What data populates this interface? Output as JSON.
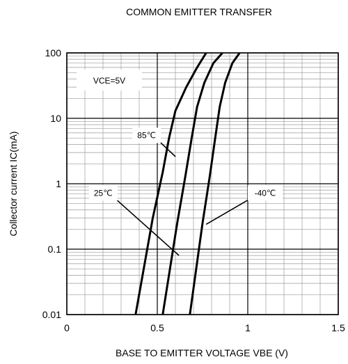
{
  "chart_data": {
    "type": "line",
    "title": "COMMON EMITTER TRANSFER",
    "xlabel": "BASE TO EMITTER VOLTAGE  VBE  (V)",
    "ylabel": "Collector current IC(mA)",
    "xlim": [
      0,
      1.5
    ],
    "ylim": [
      0.01,
      100
    ],
    "y_scale": "log",
    "grid": true,
    "x_ticks": [
      0,
      0.5,
      1,
      1.5
    ],
    "x_tick_labels": [
      "0",
      "0.5",
      "1",
      "1.5"
    ],
    "y_ticks": [
      0.01,
      0.1,
      1,
      10,
      100
    ],
    "y_tick_labels": [
      "0.01",
      "0.1",
      "1",
      "10",
      "100"
    ],
    "condition_label": "VCE=5V",
    "series": [
      {
        "name": "85℃",
        "points": [
          [
            0.38,
            0.01
          ],
          [
            0.425,
            0.05
          ],
          [
            0.475,
            0.3
          ],
          [
            0.53,
            1.5
          ],
          [
            0.565,
            5
          ],
          [
            0.6,
            13
          ],
          [
            0.66,
            30
          ],
          [
            0.72,
            60
          ],
          [
            0.77,
            100
          ]
        ]
      },
      {
        "name": "25℃",
        "points": [
          [
            0.53,
            0.01
          ],
          [
            0.57,
            0.05
          ],
          [
            0.61,
            0.25
          ],
          [
            0.655,
            1.3
          ],
          [
            0.69,
            5
          ],
          [
            0.72,
            15
          ],
          [
            0.76,
            35
          ],
          [
            0.81,
            70
          ],
          [
            0.86,
            100
          ]
        ]
      },
      {
        "name": "-40℃",
        "points": [
          [
            0.68,
            0.01
          ],
          [
            0.715,
            0.05
          ],
          [
            0.75,
            0.25
          ],
          [
            0.79,
            1.3
          ],
          [
            0.82,
            5
          ],
          [
            0.845,
            15
          ],
          [
            0.875,
            35
          ],
          [
            0.915,
            70
          ],
          [
            0.955,
            100
          ]
        ]
      }
    ],
    "annotations": [
      {
        "text": "85℃",
        "series": 0,
        "label_x": 0.52,
        "label_y": 5.5,
        "target_x": 0.6,
        "target_y": 2.6
      },
      {
        "text": "25℃",
        "series": 1,
        "label_x": 0.28,
        "label_y": 0.72,
        "target_x": 0.62,
        "target_y": 0.08
      },
      {
        "text": "-40℃",
        "series": 2,
        "label_x": 1.0,
        "label_y": 0.72,
        "target_x": 0.77,
        "target_y": 0.24
      }
    ]
  }
}
